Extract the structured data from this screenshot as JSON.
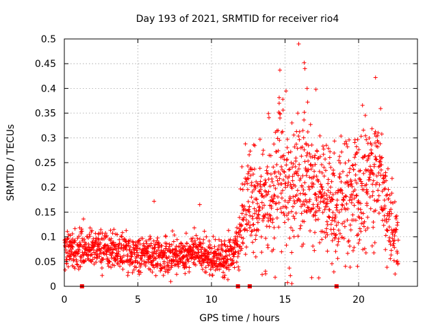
{
  "chart_data": {
    "type": "scatter",
    "title": "Day 193 of 2021, SRMTID for receiver rio4",
    "xlabel": "GPS time / hours",
    "ylabel": "SRMTID / TECUs",
    "xlim": [
      0,
      24
    ],
    "ylim": [
      0,
      0.5
    ],
    "xticks": [
      0,
      5,
      10,
      15,
      20
    ],
    "yticks": [
      0,
      0.05,
      0.1,
      0.15,
      0.2,
      0.25,
      0.3,
      0.35,
      0.4,
      0.45,
      0.5
    ],
    "xtick_labels": [
      "0",
      "5",
      "10",
      "15",
      "20"
    ],
    "ytick_labels": [
      "0",
      "0.05",
      "0.1",
      "0.15",
      "0.2",
      "0.25",
      "0.3",
      "0.35",
      "0.4",
      "0.45",
      "0.5"
    ],
    "grid": true,
    "marker": "plus",
    "color": "#ff0000",
    "data_gaps_at_zero": [
      1.2,
      11.8,
      12.6,
      18.5
    ],
    "series_envelope": [
      {
        "x": 0.0,
        "y": 0.07
      },
      {
        "x": 1.0,
        "y": 0.075
      },
      {
        "x": 2.0,
        "y": 0.08
      },
      {
        "x": 3.0,
        "y": 0.075
      },
      {
        "x": 4.0,
        "y": 0.07
      },
      {
        "x": 5.0,
        "y": 0.065
      },
      {
        "x": 6.0,
        "y": 0.065
      },
      {
        "x": 7.0,
        "y": 0.06
      },
      {
        "x": 8.0,
        "y": 0.065
      },
      {
        "x": 9.0,
        "y": 0.07
      },
      {
        "x": 10.0,
        "y": 0.06
      },
      {
        "x": 11.0,
        "y": 0.06
      },
      {
        "x": 11.8,
        "y": 0.08
      },
      {
        "x": 12.3,
        "y": 0.17
      },
      {
        "x": 13.0,
        "y": 0.16
      },
      {
        "x": 14.0,
        "y": 0.18
      },
      {
        "x": 14.7,
        "y": 0.24
      },
      {
        "x": 15.0,
        "y": 0.2
      },
      {
        "x": 15.5,
        "y": 0.18
      },
      {
        "x": 16.2,
        "y": 0.24
      },
      {
        "x": 16.6,
        "y": 0.2
      },
      {
        "x": 17.2,
        "y": 0.19
      },
      {
        "x": 18.0,
        "y": 0.17
      },
      {
        "x": 18.5,
        "y": 0.15
      },
      {
        "x": 19.0,
        "y": 0.18
      },
      {
        "x": 19.5,
        "y": 0.17
      },
      {
        "x": 20.0,
        "y": 0.19
      },
      {
        "x": 20.5,
        "y": 0.2
      },
      {
        "x": 21.0,
        "y": 0.24
      },
      {
        "x": 21.5,
        "y": 0.23
      },
      {
        "x": 22.0,
        "y": 0.15
      },
      {
        "x": 22.5,
        "y": 0.1
      },
      {
        "x": 22.7,
        "y": 0.08
      }
    ],
    "spread": [
      {
        "x": 0.0,
        "s": 0.018
      },
      {
        "x": 11.8,
        "s": 0.018
      },
      {
        "x": 12.3,
        "s": 0.05
      },
      {
        "x": 14.7,
        "s": 0.07
      },
      {
        "x": 16.2,
        "s": 0.07
      },
      {
        "x": 18.0,
        "s": 0.055
      },
      {
        "x": 21.0,
        "s": 0.07
      },
      {
        "x": 22.7,
        "s": 0.03
      }
    ],
    "sampling_interval_hours": 0.012,
    "peak_points": [
      {
        "x": 14.65,
        "y": 0.437
      },
      {
        "x": 16.3,
        "y": 0.452
      },
      {
        "x": 16.35,
        "y": 0.44
      },
      {
        "x": 17.1,
        "y": 0.398
      },
      {
        "x": 21.15,
        "y": 0.422
      },
      {
        "x": 16.5,
        "y": 0.4
      },
      {
        "x": 14.6,
        "y": 0.37
      },
      {
        "x": 6.1,
        "y": 0.172
      },
      {
        "x": 9.2,
        "y": 0.165
      }
    ]
  }
}
